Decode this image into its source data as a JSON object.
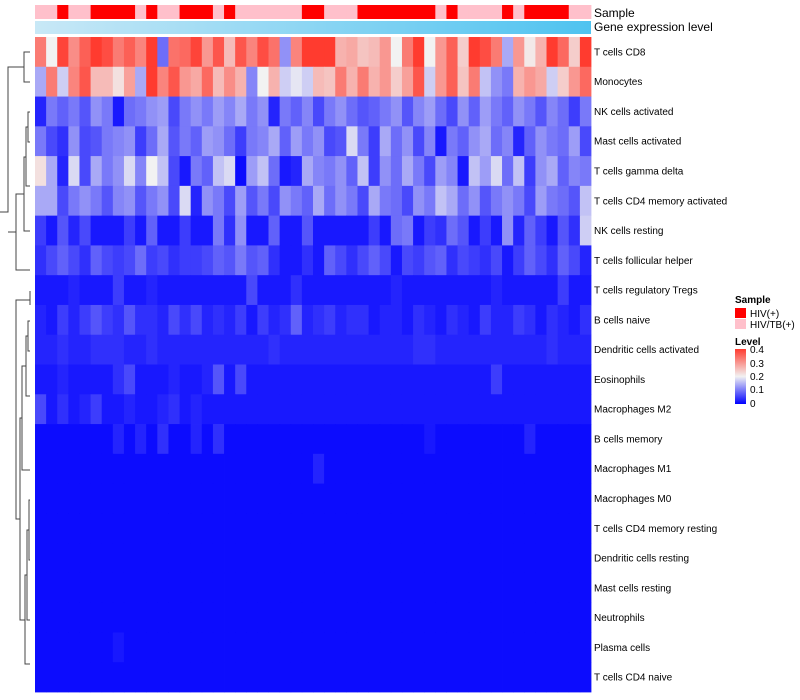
{
  "chart_data": {
    "type": "heatmap",
    "title": "",
    "annotations": [
      {
        "name": "Sample",
        "label": "Sample"
      },
      {
        "name": "Gene expression level",
        "label": "Gene expression level"
      }
    ],
    "row_labels": [
      "T cells CD8",
      "Monocytes",
      "NK cells activated",
      "Mast cells activated",
      "T cells gamma delta",
      "T cells CD4 memory activated",
      "NK cells resting",
      "T cells follicular helper",
      "T cells regulatory  Tregs",
      "B cells naive",
      "Dendritic cells activated",
      "Eosinophils",
      "Macrophages M2",
      "B cells memory",
      "Macrophages M1",
      "Macrophages M0",
      "T cells CD4 memory resting",
      "Dendritic cells resting",
      "Mast cells resting",
      "Neutrophils",
      "Plasma cells",
      "T cells CD4 naive"
    ],
    "sample_groups": [
      "HIV/TB",
      "HIV/TB",
      "HIV",
      "HIV/TB",
      "HIV/TB",
      "HIV",
      "HIV",
      "HIV",
      "HIV",
      "HIV/TB",
      "HIV",
      "HIV/TB",
      "HIV/TB",
      "HIV",
      "HIV",
      "HIV",
      "HIV/TB",
      "HIV",
      "HIV/TB",
      "HIV/TB",
      "HIV/TB",
      "HIV/TB",
      "HIV/TB",
      "HIV/TB",
      "HIV",
      "HIV",
      "HIV/TB",
      "HIV/TB",
      "HIV/TB",
      "HIV",
      "HIV",
      "HIV",
      "HIV",
      "HIV",
      "HIV",
      "HIV",
      "HIV/TB",
      "HIV",
      "HIV/TB",
      "HIV/TB",
      "HIV/TB",
      "HIV/TB",
      "HIV",
      "HIV/TB",
      "HIV",
      "HIV",
      "HIV",
      "HIV",
      "HIV/TB",
      "HIV/TB"
    ],
    "values": [
      [
        0.33,
        0.2,
        0.39,
        0.31,
        0.36,
        0.4,
        0.38,
        0.33,
        0.36,
        0.32,
        0.4,
        0.09,
        0.34,
        0.35,
        0.39,
        0.3,
        0.37,
        0.26,
        0.37,
        0.32,
        0.38,
        0.34,
        0.12,
        0.32,
        0.4,
        0.4,
        0.4,
        0.27,
        0.28,
        0.25,
        0.26,
        0.3,
        0.2,
        0.33,
        0.4,
        0.2,
        0.3,
        0.36,
        0.24,
        0.4,
        0.38,
        0.33,
        0.14,
        0.3,
        0.21,
        0.27,
        0.4,
        0.35,
        0.24,
        0.4
      ],
      [
        0.14,
        0.33,
        0.17,
        0.32,
        0.37,
        0.26,
        0.26,
        0.22,
        0.29,
        0.14,
        0.4,
        0.32,
        0.37,
        0.3,
        0.28,
        0.35,
        0.26,
        0.31,
        0.27,
        0.11,
        0.2,
        0.27,
        0.17,
        0.19,
        0.17,
        0.26,
        0.25,
        0.33,
        0.27,
        0.33,
        0.27,
        0.3,
        0.24,
        0.29,
        0.37,
        0.17,
        0.3,
        0.36,
        0.25,
        0.33,
        0.16,
        0.12,
        0.1,
        0.27,
        0.3,
        0.28,
        0.17,
        0.24,
        0.3,
        0.35
      ],
      [
        0.03,
        0.1,
        0.08,
        0.1,
        0.07,
        0.12,
        0.1,
        0.02,
        0.09,
        0.1,
        0.12,
        0.13,
        0.06,
        0.1,
        0.12,
        0.1,
        0.13,
        0.11,
        0.14,
        0.1,
        0.12,
        0.03,
        0.1,
        0.08,
        0.11,
        0.06,
        0.1,
        0.12,
        0.09,
        0.07,
        0.08,
        0.1,
        0.12,
        0.07,
        0.11,
        0.13,
        0.09,
        0.06,
        0.12,
        0.08,
        0.13,
        0.1,
        0.08,
        0.12,
        0.1,
        0.07,
        0.11,
        0.09,
        0.05,
        0.1
      ],
      [
        0.1,
        0.06,
        0.04,
        0.12,
        0.06,
        0.07,
        0.1,
        0.11,
        0.12,
        0.05,
        0.09,
        0.14,
        0.07,
        0.1,
        0.08,
        0.13,
        0.12,
        0.09,
        0.05,
        0.1,
        0.11,
        0.14,
        0.08,
        0.13,
        0.1,
        0.12,
        0.06,
        0.07,
        0.18,
        0.1,
        0.05,
        0.14,
        0.09,
        0.12,
        0.06,
        0.11,
        0.02,
        0.1,
        0.08,
        0.12,
        0.14,
        0.09,
        0.11,
        0.03,
        0.08,
        0.12,
        0.1,
        0.09,
        0.13,
        0.06
      ],
      [
        0.22,
        0.14,
        0.03,
        0.18,
        0.06,
        0.14,
        0.1,
        0.12,
        0.18,
        0.11,
        0.2,
        0.16,
        0.06,
        0.02,
        0.1,
        0.08,
        0.16,
        0.18,
        0.01,
        0.13,
        0.16,
        0.09,
        0.02,
        0.03,
        0.14,
        0.11,
        0.1,
        0.12,
        0.08,
        0.16,
        0.05,
        0.12,
        0.09,
        0.14,
        0.1,
        0.06,
        0.13,
        0.11,
        0.02,
        0.16,
        0.13,
        0.18,
        0.09,
        0.16,
        0.05,
        0.12,
        0.14,
        0.08,
        0.11,
        0.1
      ],
      [
        0.14,
        0.14,
        0.06,
        0.1,
        0.12,
        0.1,
        0.07,
        0.11,
        0.12,
        0.07,
        0.1,
        0.12,
        0.06,
        0.18,
        0.03,
        0.12,
        0.1,
        0.06,
        0.13,
        0.07,
        0.1,
        0.06,
        0.12,
        0.1,
        0.08,
        0.14,
        0.09,
        0.12,
        0.1,
        0.06,
        0.14,
        0.1,
        0.09,
        0.06,
        0.12,
        0.1,
        0.16,
        0.14,
        0.09,
        0.12,
        0.07,
        0.1,
        0.12,
        0.1,
        0.06,
        0.13,
        0.1,
        0.09,
        0.07,
        0.16
      ],
      [
        0.05,
        0.02,
        0.07,
        0.03,
        0.06,
        0.02,
        0.02,
        0.02,
        0.05,
        0.02,
        0.08,
        0.02,
        0.02,
        0.05,
        0.02,
        0.02,
        0.1,
        0.04,
        0.12,
        0.02,
        0.02,
        0.08,
        0.02,
        0.02,
        0.07,
        0.02,
        0.02,
        0.02,
        0.02,
        0.02,
        0.05,
        0.02,
        0.09,
        0.1,
        0.02,
        0.05,
        0.04,
        0.09,
        0.07,
        0.02,
        0.05,
        0.02,
        0.12,
        0.03,
        0.08,
        0.05,
        0.02,
        0.07,
        0.04,
        0.17
      ],
      [
        0.04,
        0.06,
        0.08,
        0.06,
        0.04,
        0.08,
        0.06,
        0.05,
        0.06,
        0.09,
        0.05,
        0.06,
        0.04,
        0.05,
        0.05,
        0.06,
        0.08,
        0.07,
        0.1,
        0.07,
        0.08,
        0.04,
        0.02,
        0.02,
        0.04,
        0.02,
        0.08,
        0.06,
        0.04,
        0.06,
        0.08,
        0.06,
        0.02,
        0.06,
        0.05,
        0.07,
        0.08,
        0.04,
        0.06,
        0.05,
        0.04,
        0.06,
        0.02,
        0.05,
        0.08,
        0.06,
        0.04,
        0.08,
        0.06,
        0.03
      ],
      [
        0.02,
        0.02,
        0.02,
        0.03,
        0.02,
        0.02,
        0.02,
        0.05,
        0.02,
        0.02,
        0.03,
        0.02,
        0.02,
        0.02,
        0.02,
        0.02,
        0.02,
        0.02,
        0.02,
        0.06,
        0.02,
        0.02,
        0.02,
        0.04,
        0.02,
        0.02,
        0.02,
        0.02,
        0.02,
        0.02,
        0.02,
        0.02,
        0.03,
        0.02,
        0.02,
        0.02,
        0.02,
        0.02,
        0.02,
        0.02,
        0.02,
        0.03,
        0.02,
        0.02,
        0.02,
        0.02,
        0.02,
        0.05,
        0.02,
        0.02
      ],
      [
        0.03,
        0.02,
        0.05,
        0.03,
        0.05,
        0.07,
        0.05,
        0.04,
        0.07,
        0.04,
        0.04,
        0.03,
        0.06,
        0.04,
        0.06,
        0.03,
        0.04,
        0.03,
        0.05,
        0.02,
        0.05,
        0.03,
        0.04,
        0.08,
        0.03,
        0.04,
        0.05,
        0.03,
        0.04,
        0.04,
        0.02,
        0.03,
        0.03,
        0.02,
        0.04,
        0.03,
        0.02,
        0.04,
        0.03,
        0.02,
        0.05,
        0.03,
        0.03,
        0.05,
        0.04,
        0.02,
        0.04,
        0.03,
        0.02,
        0.04
      ],
      [
        0.03,
        0.03,
        0.04,
        0.03,
        0.03,
        0.04,
        0.04,
        0.04,
        0.03,
        0.03,
        0.04,
        0.03,
        0.03,
        0.03,
        0.03,
        0.03,
        0.03,
        0.03,
        0.03,
        0.03,
        0.03,
        0.04,
        0.03,
        0.03,
        0.03,
        0.03,
        0.03,
        0.03,
        0.03,
        0.03,
        0.03,
        0.03,
        0.03,
        0.03,
        0.04,
        0.04,
        0.03,
        0.03,
        0.03,
        0.03,
        0.03,
        0.03,
        0.03,
        0.03,
        0.03,
        0.03,
        0.04,
        0.03,
        0.03,
        0.03
      ],
      [
        0.02,
        0.02,
        0.03,
        0.02,
        0.02,
        0.02,
        0.02,
        0.04,
        0.06,
        0.02,
        0.02,
        0.02,
        0.03,
        0.02,
        0.02,
        0.03,
        0.07,
        0.02,
        0.06,
        0.02,
        0.02,
        0.02,
        0.02,
        0.02,
        0.02,
        0.02,
        0.02,
        0.02,
        0.02,
        0.02,
        0.02,
        0.02,
        0.02,
        0.02,
        0.02,
        0.02,
        0.02,
        0.02,
        0.02,
        0.02,
        0.02,
        0.05,
        0.02,
        0.02,
        0.02,
        0.02,
        0.02,
        0.02,
        0.02,
        0.02
      ],
      [
        0.06,
        0.02,
        0.04,
        0.02,
        0.03,
        0.05,
        0.02,
        0.02,
        0.03,
        0.02,
        0.02,
        0.03,
        0.04,
        0.02,
        0.03,
        0.02,
        0.02,
        0.02,
        0.02,
        0.02,
        0.02,
        0.02,
        0.02,
        0.02,
        0.02,
        0.02,
        0.02,
        0.02,
        0.02,
        0.02,
        0.02,
        0.02,
        0.02,
        0.02,
        0.02,
        0.02,
        0.02,
        0.02,
        0.02,
        0.02,
        0.02,
        0.02,
        0.02,
        0.02,
        0.02,
        0.02,
        0.02,
        0.02,
        0.02,
        0.02
      ],
      [
        0.01,
        0.01,
        0.01,
        0.01,
        0.01,
        0.01,
        0.01,
        0.03,
        0.01,
        0.03,
        0.01,
        0.04,
        0.01,
        0.01,
        0.03,
        0.01,
        0.04,
        0.01,
        0.01,
        0.01,
        0.01,
        0.01,
        0.01,
        0.01,
        0.01,
        0.01,
        0.01,
        0.01,
        0.01,
        0.01,
        0.01,
        0.01,
        0.01,
        0.01,
        0.01,
        0.02,
        0.01,
        0.01,
        0.01,
        0.01,
        0.01,
        0.01,
        0.01,
        0.01,
        0.03,
        0.01,
        0.01,
        0.01,
        0.01,
        0.01
      ],
      [
        0.01,
        0.01,
        0.01,
        0.01,
        0.01,
        0.01,
        0.01,
        0.01,
        0.01,
        0.01,
        0.01,
        0.01,
        0.01,
        0.01,
        0.01,
        0.01,
        0.01,
        0.01,
        0.01,
        0.01,
        0.01,
        0.01,
        0.01,
        0.01,
        0.01,
        0.03,
        0.01,
        0.01,
        0.01,
        0.01,
        0.01,
        0.01,
        0.01,
        0.01,
        0.01,
        0.01,
        0.01,
        0.01,
        0.01,
        0.01,
        0.01,
        0.01,
        0.01,
        0.01,
        0.01,
        0.01,
        0.01,
        0.01,
        0.01,
        0.01
      ],
      [
        0.01,
        0.01,
        0.01,
        0.01,
        0.01,
        0.01,
        0.01,
        0.01,
        0.01,
        0.01,
        0.01,
        0.01,
        0.01,
        0.01,
        0.01,
        0.01,
        0.01,
        0.01,
        0.01,
        0.01,
        0.01,
        0.01,
        0.01,
        0.01,
        0.01,
        0.01,
        0.01,
        0.01,
        0.01,
        0.01,
        0.01,
        0.01,
        0.01,
        0.01,
        0.01,
        0.01,
        0.01,
        0.01,
        0.01,
        0.01,
        0.01,
        0.01,
        0.01,
        0.01,
        0.01,
        0.01,
        0.01,
        0.01,
        0.01,
        0.01
      ],
      [
        0.01,
        0.01,
        0.01,
        0.01,
        0.01,
        0.01,
        0.01,
        0.01,
        0.01,
        0.01,
        0.01,
        0.01,
        0.01,
        0.01,
        0.01,
        0.01,
        0.01,
        0.01,
        0.01,
        0.01,
        0.01,
        0.01,
        0.01,
        0.01,
        0.01,
        0.01,
        0.01,
        0.01,
        0.01,
        0.01,
        0.01,
        0.01,
        0.01,
        0.01,
        0.01,
        0.01,
        0.01,
        0.01,
        0.01,
        0.01,
        0.01,
        0.01,
        0.01,
        0.01,
        0.01,
        0.01,
        0.01,
        0.01,
        0.01,
        0.01
      ],
      [
        0.01,
        0.01,
        0.01,
        0.01,
        0.01,
        0.01,
        0.01,
        0.01,
        0.01,
        0.01,
        0.01,
        0.01,
        0.01,
        0.01,
        0.01,
        0.01,
        0.01,
        0.01,
        0.01,
        0.01,
        0.01,
        0.01,
        0.01,
        0.01,
        0.01,
        0.01,
        0.01,
        0.01,
        0.01,
        0.01,
        0.01,
        0.01,
        0.01,
        0.01,
        0.01,
        0.01,
        0.01,
        0.01,
        0.01,
        0.01,
        0.01,
        0.01,
        0.01,
        0.01,
        0.01,
        0.01,
        0.01,
        0.01,
        0.01,
        0.01
      ],
      [
        0.01,
        0.01,
        0.01,
        0.01,
        0.01,
        0.01,
        0.01,
        0.01,
        0.01,
        0.01,
        0.01,
        0.01,
        0.01,
        0.01,
        0.01,
        0.01,
        0.01,
        0.01,
        0.01,
        0.01,
        0.01,
        0.01,
        0.01,
        0.01,
        0.01,
        0.01,
        0.01,
        0.01,
        0.01,
        0.01,
        0.01,
        0.01,
        0.01,
        0.01,
        0.01,
        0.01,
        0.01,
        0.01,
        0.01,
        0.01,
        0.01,
        0.01,
        0.01,
        0.01,
        0.01,
        0.01,
        0.01,
        0.01,
        0.01,
        0.01
      ],
      [
        0.01,
        0.01,
        0.01,
        0.01,
        0.01,
        0.01,
        0.01,
        0.01,
        0.01,
        0.01,
        0.01,
        0.01,
        0.01,
        0.01,
        0.01,
        0.01,
        0.01,
        0.01,
        0.01,
        0.01,
        0.01,
        0.01,
        0.01,
        0.01,
        0.01,
        0.01,
        0.01,
        0.01,
        0.01,
        0.01,
        0.01,
        0.01,
        0.01,
        0.01,
        0.01,
        0.01,
        0.01,
        0.01,
        0.01,
        0.01,
        0.01,
        0.01,
        0.01,
        0.01,
        0.01,
        0.01,
        0.01,
        0.01,
        0.01,
        0.01
      ],
      [
        0.01,
        0.01,
        0.01,
        0.01,
        0.01,
        0.01,
        0.01,
        0.02,
        0.01,
        0.01,
        0.01,
        0.01,
        0.01,
        0.01,
        0.01,
        0.01,
        0.01,
        0.01,
        0.01,
        0.01,
        0.01,
        0.01,
        0.01,
        0.01,
        0.01,
        0.01,
        0.01,
        0.01,
        0.01,
        0.01,
        0.01,
        0.01,
        0.01,
        0.01,
        0.01,
        0.01,
        0.01,
        0.01,
        0.01,
        0.01,
        0.01,
        0.01,
        0.01,
        0.01,
        0.01,
        0.01,
        0.01,
        0.01,
        0.01,
        0.01
      ],
      [
        0.01,
        0.01,
        0.01,
        0.01,
        0.01,
        0.01,
        0.01,
        0.01,
        0.01,
        0.01,
        0.01,
        0.01,
        0.01,
        0.01,
        0.01,
        0.01,
        0.01,
        0.01,
        0.01,
        0.01,
        0.01,
        0.01,
        0.01,
        0.01,
        0.01,
        0.01,
        0.01,
        0.01,
        0.01,
        0.01,
        0.01,
        0.01,
        0.01,
        0.01,
        0.01,
        0.01,
        0.01,
        0.01,
        0.01,
        0.01,
        0.01,
        0.01,
        0.01,
        0.01,
        0.01,
        0.01,
        0.01,
        0.01,
        0.01,
        0.01
      ]
    ],
    "color_scale": {
      "min": 0,
      "max": 0.4,
      "low": "#0000ff",
      "mid": "#f2f2f2",
      "high": "#ff3b2f"
    },
    "legend": [
      {
        "title": "Sample",
        "items": [
          {
            "label": "HIV(+)",
            "color": "#ff0000"
          },
          {
            "label": "HIV/TB(+)",
            "color": "#ffc0cb"
          }
        ]
      },
      {
        "title": "Level",
        "ticks": [
          "0.4",
          "0.3",
          "0.2",
          "0.1",
          "0"
        ]
      }
    ]
  }
}
